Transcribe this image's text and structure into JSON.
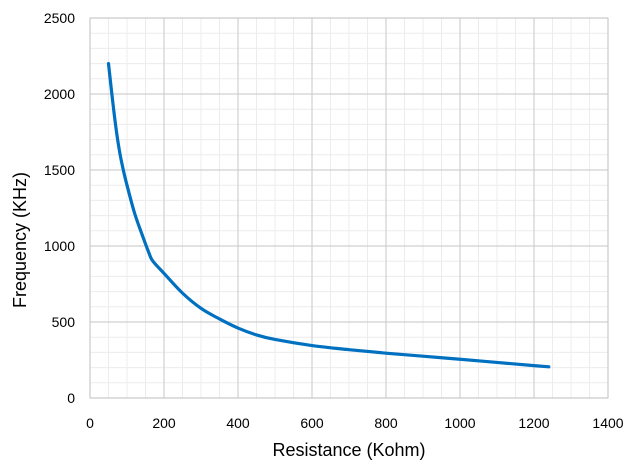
{
  "chart_data": {
    "type": "line",
    "title": "",
    "xlabel": "Resistance (Kohm)",
    "ylabel": "Frequency (KHz)",
    "xlim": [
      0,
      1400
    ],
    "ylim": [
      0,
      2500
    ],
    "x_ticks": [
      0,
      200,
      400,
      600,
      800,
      1000,
      1200,
      1400
    ],
    "y_ticks": [
      0,
      500,
      1000,
      1500,
      2000,
      2500
    ],
    "x_minor_step": 50,
    "y_minor_step": 100,
    "grid": true,
    "legend": "none",
    "series": [
      {
        "color": "#0070c0",
        "x": [
          50,
          60,
          70,
          80,
          90,
          100,
          120,
          140,
          160,
          170,
          200,
          250,
          300,
          350,
          400,
          450,
          500,
          600,
          700,
          800,
          900,
          1000,
          1100,
          1200,
          1240
        ],
        "y": [
          2200,
          1980,
          1780,
          1620,
          1500,
          1400,
          1220,
          1080,
          950,
          900,
          820,
          690,
          590,
          520,
          460,
          415,
          385,
          345,
          318,
          295,
          275,
          255,
          234,
          213,
          205
        ]
      }
    ]
  }
}
